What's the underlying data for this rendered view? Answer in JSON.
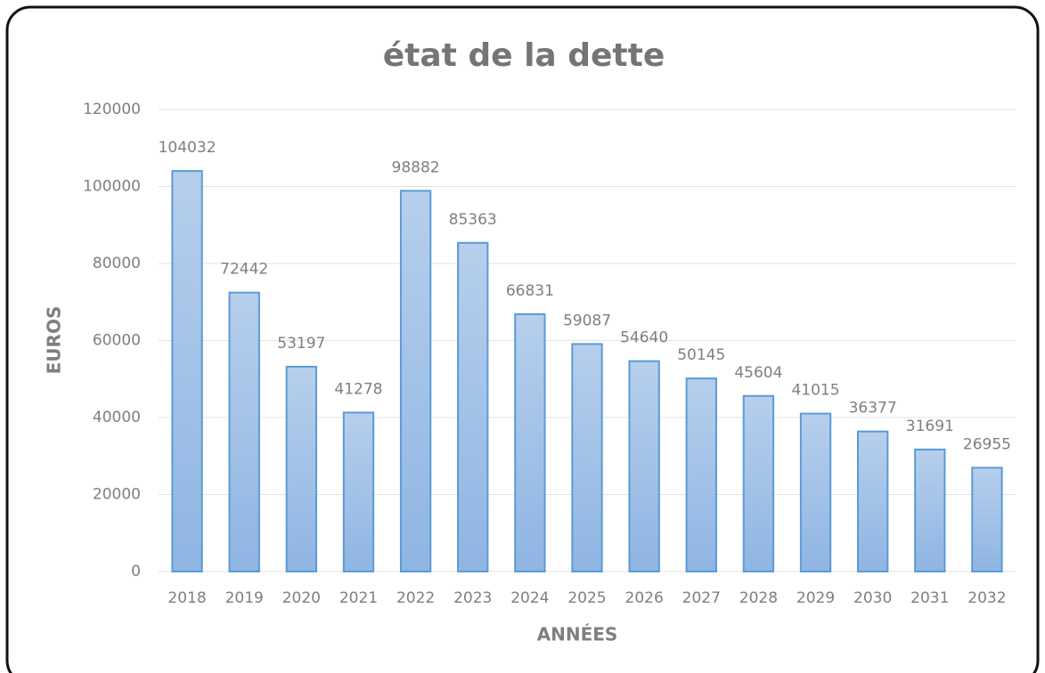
{
  "chart_data": {
    "type": "bar",
    "title": "état de la dette",
    "x_label": "ANNÉES",
    "y_label": "EUROS",
    "categories": [
      "2018",
      "2019",
      "2020",
      "2021",
      "2022",
      "2023",
      "2024",
      "2025",
      "2026",
      "2027",
      "2028",
      "2029",
      "2030",
      "2031",
      "2032"
    ],
    "values": [
      104032,
      72442,
      53197,
      41278,
      98882,
      85363,
      66831,
      59087,
      54640,
      50145,
      45604,
      41015,
      36377,
      31691,
      26955
    ],
    "color": "#5b9bd5",
    "ylim": [
      0,
      120000
    ],
    "yticks": [
      0,
      20000,
      40000,
      60000,
      80000,
      100000,
      120000
    ],
    "grid": true
  }
}
